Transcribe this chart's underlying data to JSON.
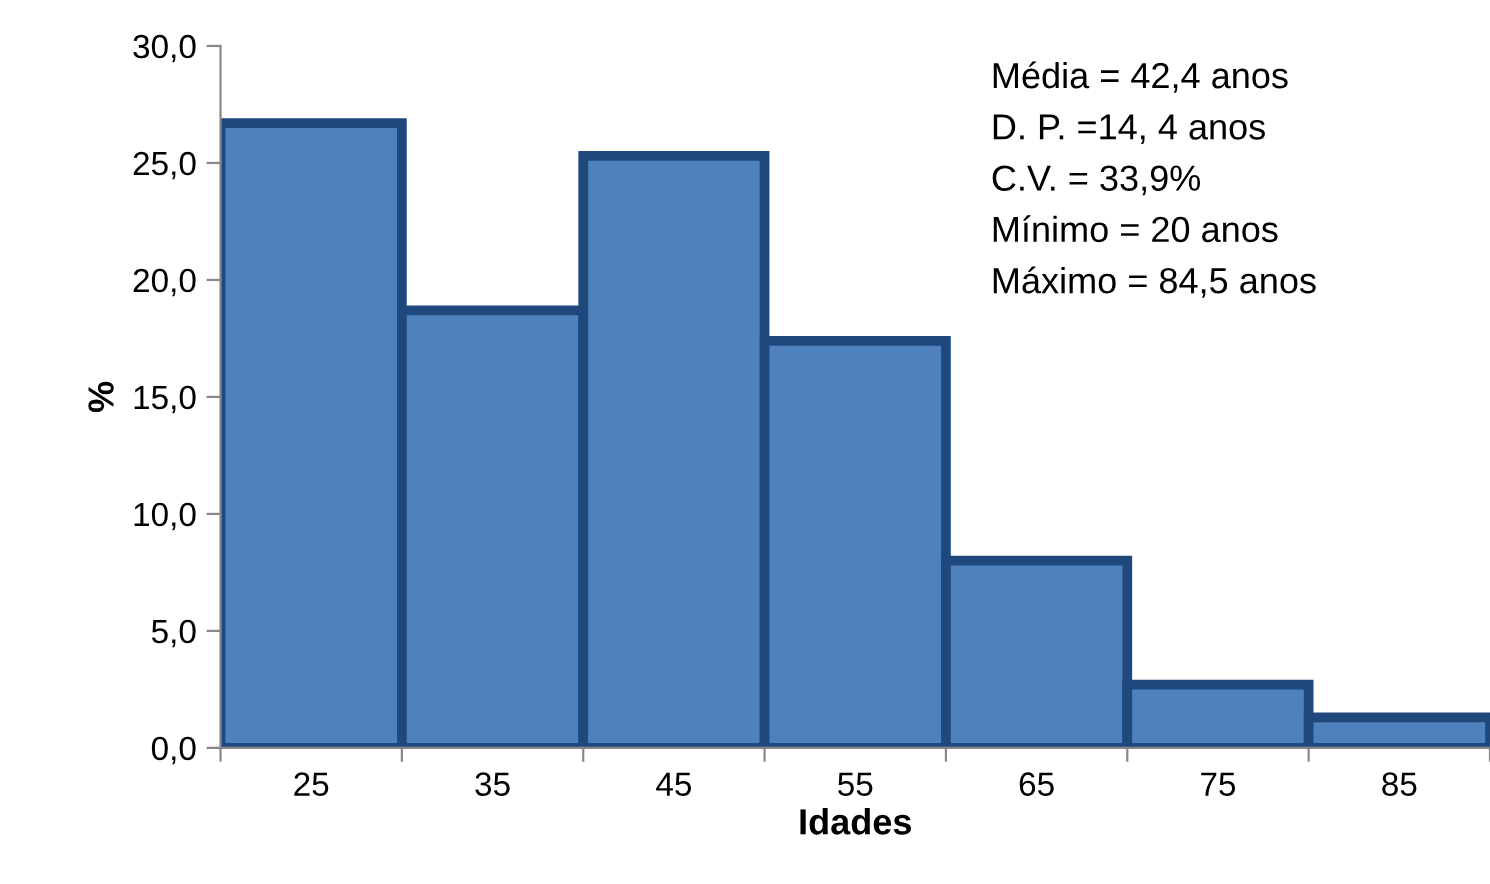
{
  "chart_data": {
    "type": "histogram",
    "xlabel": "Idades",
    "ylabel": "%",
    "bins": [
      20,
      30,
      40,
      50,
      60,
      70,
      80,
      90
    ],
    "values": [
      26.7,
      18.7,
      25.3,
      17.4,
      8.0,
      2.7,
      1.3
    ],
    "color": "#4f81bd",
    "xlim": [
      20,
      90
    ],
    "xticks": [
      {
        "value": 20,
        "label": null
      },
      25,
      {
        "value": 30,
        "label": null
      },
      35,
      {
        "value": 40,
        "label": null
      },
      45,
      {
        "value": 50,
        "label": null
      },
      55,
      {
        "value": 60,
        "label": null
      },
      65,
      {
        "value": 70,
        "label": null
      },
      75,
      {
        "value": 80,
        "label": null
      },
      85,
      {
        "value": 90,
        "label": null
      }
    ],
    "ylim": [
      0,
      30
    ],
    "yticks": [
      {
        "value": 0,
        "label": "0,0"
      },
      {
        "value": 5,
        "label": "5,0"
      },
      {
        "value": 10,
        "label": "10,0"
      },
      {
        "value": 15,
        "label": "15,0"
      },
      {
        "value": 20,
        "label": "20,0"
      },
      {
        "value": 25,
        "label": "25,0"
      },
      {
        "value": 30,
        "label": "30,0"
      }
    ],
    "grid": false,
    "legend": false,
    "annotations": [
      "Média = 42,4 anos",
      "D. P. =14, 4 anos",
      "C.V. = 33,9%",
      "Mínimo = 20 anos",
      "Máximo = 84,5 anos"
    ]
  }
}
